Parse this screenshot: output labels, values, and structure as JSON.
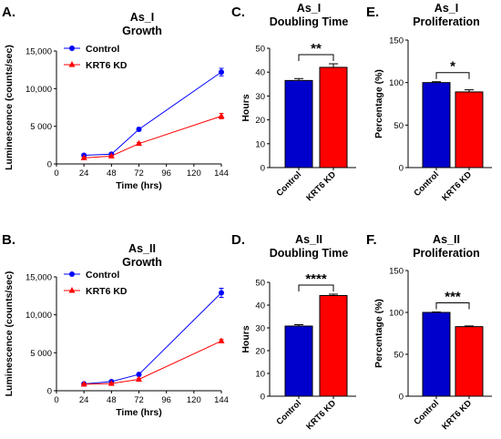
{
  "panels": [
    {
      "label": "A.",
      "title_lines": [
        "As_I",
        "Growth"
      ]
    },
    {
      "label": "B.",
      "title_lines": [
        "As_II",
        "Growth"
      ]
    },
    {
      "label": "C.",
      "title_lines": [
        "As_I",
        "Doubling Time"
      ]
    },
    {
      "label": "D.",
      "title_lines": [
        "As_II",
        "Doubling Time"
      ]
    },
    {
      "label": "E.",
      "title_lines": [
        "As_I",
        "Proliferation"
      ]
    },
    {
      "label": "F.",
      "title_lines": [
        "As_II",
        "Proliferation"
      ]
    }
  ],
  "colors": {
    "control": "#0000ff",
    "kd": "#ff0000",
    "control_bar": "#0000cc",
    "kd_bar": "#ff0000"
  },
  "chart_data": [
    {
      "id": "A",
      "type": "line",
      "title": "As_I Growth",
      "xlabel": "Time (hrs)",
      "ylabel": "Luminescence (counts/sec)",
      "xlim": [
        0,
        144
      ],
      "ylim": [
        0,
        15000
      ],
      "xticks": [
        0,
        24,
        48,
        72,
        96,
        120,
        144
      ],
      "yticks": [
        0,
        5000,
        10000,
        15000
      ],
      "ytick_labels": [
        "0",
        "5 000",
        "10,000",
        "15,000"
      ],
      "x": [
        24,
        48,
        72,
        144
      ],
      "series": [
        {
          "name": "Control",
          "marker": "circle",
          "values": [
            1150,
            1300,
            4600,
            12200
          ],
          "errors": [
            150,
            150,
            200,
            500
          ]
        },
        {
          "name": "KRT6 KD",
          "marker": "triangle",
          "values": [
            800,
            1050,
            2700,
            6350
          ],
          "errors": [
            100,
            100,
            150,
            350
          ]
        }
      ],
      "legend": "top-left"
    },
    {
      "id": "B",
      "type": "line",
      "title": "As_II Growth",
      "xlabel": "Time (hrs)",
      "ylabel": "Luminescence (counts/sec)",
      "xlim": [
        0,
        144
      ],
      "ylim": [
        0,
        15000
      ],
      "xticks": [
        0,
        24,
        48,
        72,
        96,
        120,
        144
      ],
      "yticks": [
        0,
        5000,
        10000,
        15000
      ],
      "ytick_labels": [
        "0",
        "5 000",
        "10,000",
        "15,000"
      ],
      "x": [
        24,
        48,
        72,
        144
      ],
      "series": [
        {
          "name": "Control",
          "marker": "circle",
          "values": [
            900,
            1200,
            2150,
            12900
          ],
          "errors": [
            100,
            150,
            200,
            600
          ]
        },
        {
          "name": "KRT6 KD",
          "marker": "triangle",
          "values": [
            850,
            950,
            1500,
            6550
          ],
          "errors": [
            100,
            100,
            150,
            200
          ]
        }
      ],
      "legend": "top-left"
    },
    {
      "id": "C",
      "type": "bar",
      "title": "As_I Doubling Time",
      "ylabel": "Hours",
      "ylim": [
        0,
        50
      ],
      "yticks": [
        0,
        10,
        20,
        30,
        40,
        50
      ],
      "categories": [
        "Control",
        "KRT6 KD"
      ],
      "values": [
        36.5,
        42
      ],
      "errors": [
        0.8,
        1.5
      ],
      "significance": "**"
    },
    {
      "id": "D",
      "type": "bar",
      "title": "As_II Doubling Time",
      "ylabel": "Hours",
      "ylim": [
        0,
        50
      ],
      "yticks": [
        0,
        10,
        20,
        30,
        40,
        50
      ],
      "categories": [
        "Control",
        "KRT6 KD"
      ],
      "values": [
        30.8,
        44.2
      ],
      "errors": [
        0.6,
        0.6
      ],
      "significance": "****"
    },
    {
      "id": "E",
      "type": "bar",
      "title": "As_I Proliferation",
      "ylabel": "Percentage (%)",
      "ylim": [
        0,
        150
      ],
      "yticks": [
        0,
        50,
        100,
        150
      ],
      "categories": [
        "Control",
        "KRT6 KD"
      ],
      "values": [
        100,
        89
      ],
      "errors": [
        1,
        2.5
      ],
      "significance": "*"
    },
    {
      "id": "F",
      "type": "bar",
      "title": "As_II Proliferation",
      "ylabel": "Percentage (%)",
      "ylim": [
        0,
        150
      ],
      "yticks": [
        0,
        50,
        100,
        150
      ],
      "categories": [
        "Control",
        "KRT6 KD"
      ],
      "values": [
        100,
        83
      ],
      "errors": [
        0.5,
        0.8
      ],
      "significance": "***"
    }
  ]
}
